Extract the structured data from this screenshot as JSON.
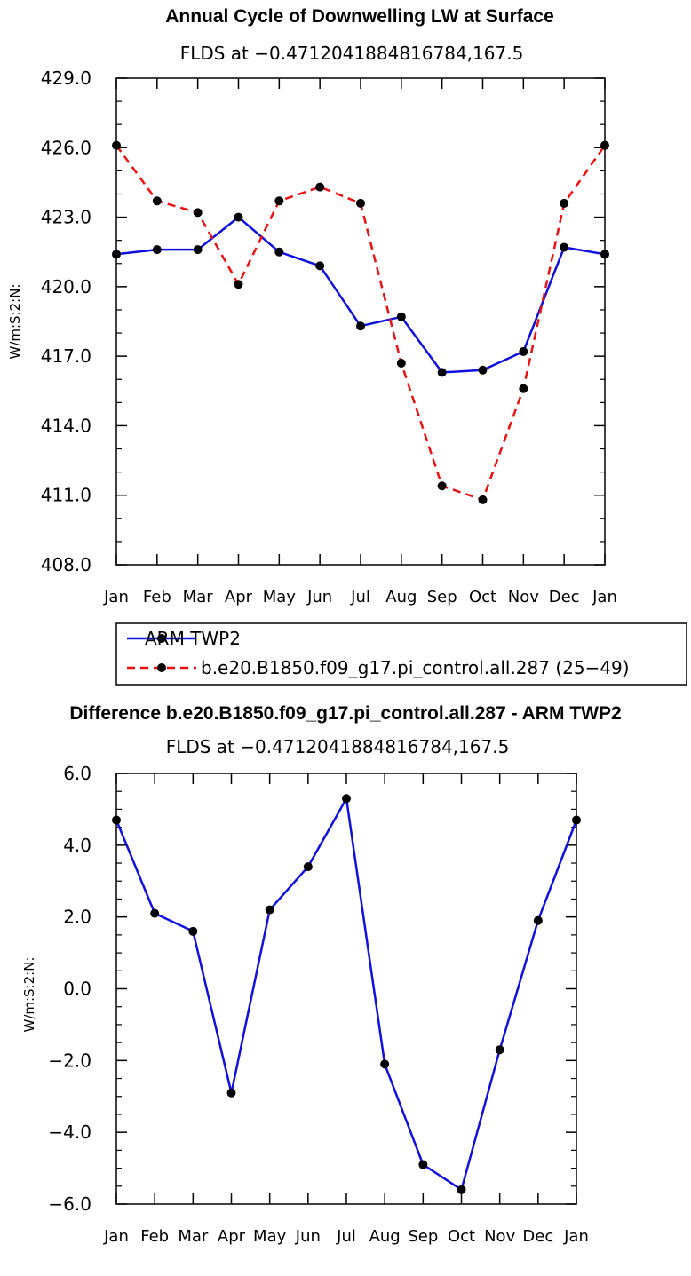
{
  "colors": {
    "obs": "#1010e0",
    "model": "#ee1111",
    "marker": "#000000"
  },
  "chart_data": [
    {
      "type": "line",
      "title": "Annual Cycle of Downwelling LW at Surface",
      "subtitle": "FLDS at −0.4712041884816784,167.5",
      "xlabel": "",
      "ylabel": "W/m:S:2:N:",
      "categories": [
        "Jan",
        "Feb",
        "Mar",
        "Apr",
        "May",
        "Jun",
        "Jul",
        "Aug",
        "Sep",
        "Oct",
        "Nov",
        "Dec",
        "Jan"
      ],
      "ylim": [
        408.0,
        429.0
      ],
      "yticks": [
        "408.0",
        "411.0",
        "414.0",
        "417.0",
        "420.0",
        "423.0",
        "426.0",
        "429.0"
      ],
      "series": [
        {
          "name": "ARM TWP2",
          "style": "solid",
          "color": "#1010e0",
          "values": [
            421.4,
            421.6,
            421.6,
            423.0,
            421.5,
            420.9,
            418.3,
            418.7,
            416.3,
            416.4,
            417.2,
            421.7,
            421.4
          ]
        },
        {
          "name": "b.e20.B1850.f09_g17.pi_control.all.287 (25−49)",
          "style": "dashed",
          "color": "#ee1111",
          "values": [
            426.1,
            423.7,
            423.2,
            420.1,
            423.7,
            424.3,
            423.6,
            416.7,
            411.4,
            410.8,
            415.6,
            423.6,
            426.1
          ]
        }
      ],
      "legend": {
        "position": "below",
        "entries": [
          "ARM TWP2",
          "b.e20.B1850.f09_g17.pi_control.all.287 (25−49)"
        ]
      }
    },
    {
      "type": "line",
      "title": "Difference b.e20.B1850.f09_g17.pi_control.all.287 - ARM TWP2",
      "subtitle": "FLDS at −0.4712041884816784,167.5",
      "xlabel": "",
      "ylabel": "W/m:S:2:N:",
      "categories": [
        "Jan",
        "Feb",
        "Mar",
        "Apr",
        "May",
        "Jun",
        "Jul",
        "Aug",
        "Sep",
        "Oct",
        "Nov",
        "Dec",
        "Jan"
      ],
      "ylim": [
        -6.0,
        6.0
      ],
      "yticks": [
        "−6.0",
        "−4.0",
        "−2.0",
        "0.0",
        "2.0",
        "4.0",
        "6.0"
      ],
      "series": [
        {
          "name": "Difference",
          "style": "solid",
          "color": "#1010e0",
          "values": [
            4.7,
            2.1,
            1.6,
            -2.9,
            2.2,
            3.4,
            5.3,
            -2.1,
            -4.9,
            -5.6,
            -1.7,
            1.9,
            4.7
          ]
        }
      ]
    }
  ]
}
